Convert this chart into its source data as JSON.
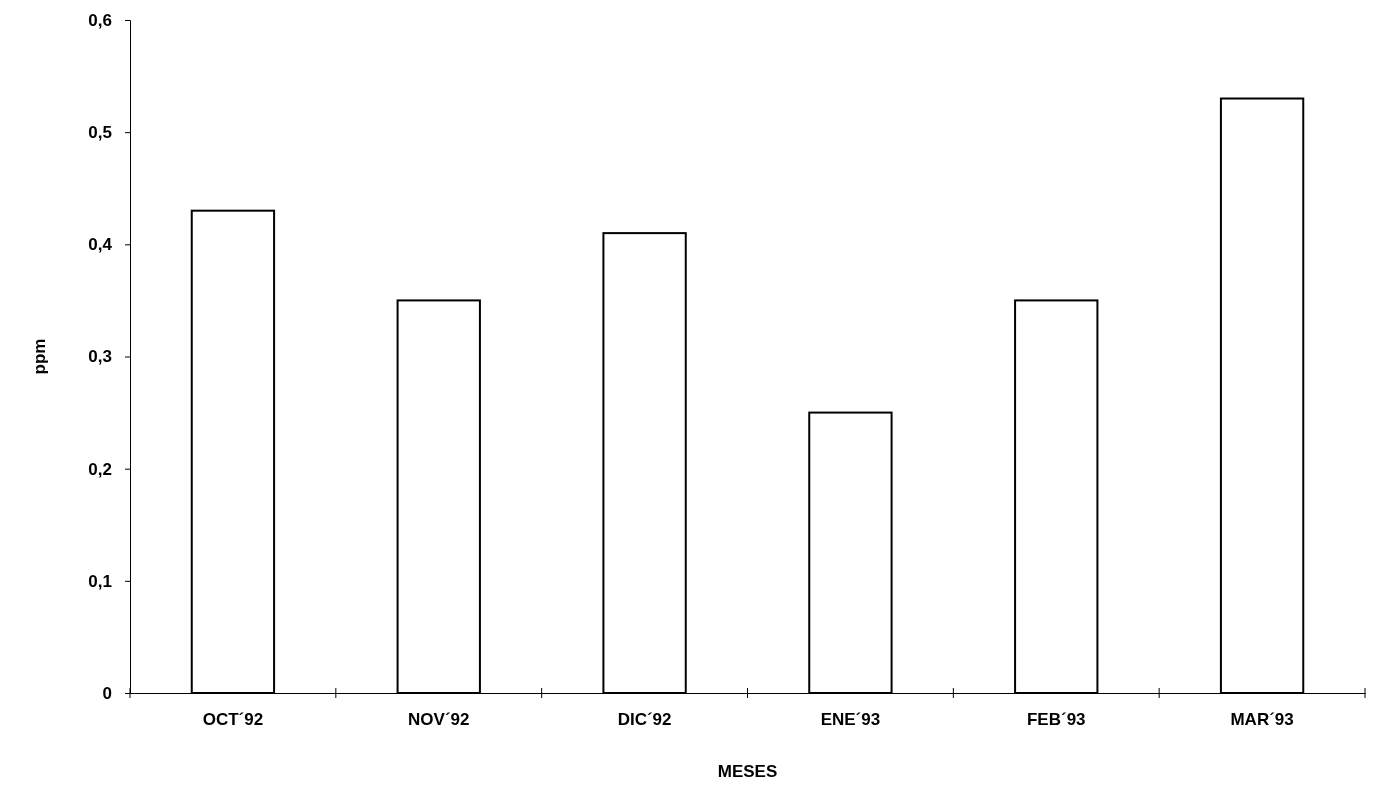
{
  "chart_data": {
    "type": "bar",
    "xlabel": "MESES",
    "ylabel": "ppm",
    "categories": [
      "OCT´92",
      "NOV´92",
      "DIC´92",
      "ENE´93",
      "FEB´93",
      "MAR´93"
    ],
    "values": [
      0.43,
      0.35,
      0.41,
      0.25,
      0.35,
      0.53
    ],
    "color": "#ffffff",
    "ylim": [
      0,
      0.6
    ],
    "yticks": [
      0,
      {
        "value": 0.1,
        "label": "0,1"
      },
      {
        "value": 0.2,
        "label": "0,2"
      },
      {
        "value": 0.3,
        "label": "0,3"
      },
      {
        "value": 0.4,
        "label": "0,4"
      },
      {
        "value": 0.5,
        "label": "0,5"
      },
      {
        "value": 0.6,
        "label": "0,6"
      }
    ],
    "grid": false
  }
}
